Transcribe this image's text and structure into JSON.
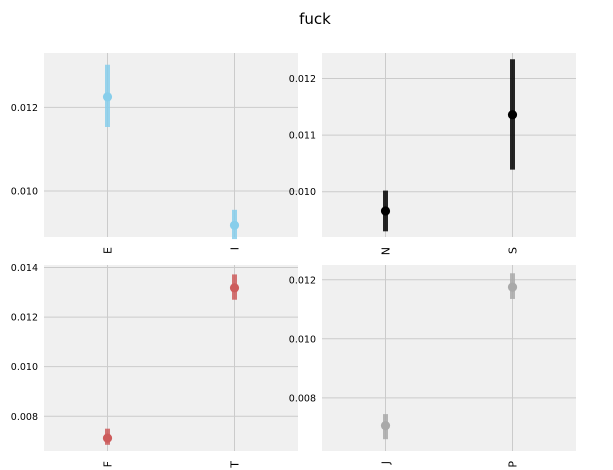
{
  "figure": {
    "title": "fuck"
  },
  "chart_data": [
    {
      "type": "point-range",
      "color": "#87CEEB",
      "categories": [
        "E",
        "I"
      ],
      "values": [
        0.01225,
        0.00918
      ],
      "lower": [
        0.01153,
        0.00885
      ],
      "upper": [
        0.01302,
        0.00955
      ],
      "ylim": [
        0.0089,
        0.0133
      ],
      "yticks": [
        0.01,
        0.012
      ],
      "ytick_labels": [
        "0.010",
        "0.012"
      ],
      "grid": true
    },
    {
      "type": "point-range",
      "color": "#000000",
      "categories": [
        "N",
        "S"
      ],
      "values": [
        0.00966,
        0.01136
      ],
      "lower": [
        0.0093,
        0.01039
      ],
      "upper": [
        0.01002,
        0.01234
      ],
      "ylim": [
        0.0092,
        0.01245
      ],
      "yticks": [
        0.01,
        0.011,
        0.012
      ],
      "ytick_labels": [
        "0.010",
        "0.011",
        "0.012"
      ],
      "grid": true
    },
    {
      "type": "point-range",
      "color": "#CD5C5C",
      "categories": [
        "F",
        "T"
      ],
      "values": [
        0.00712,
        0.01318
      ],
      "lower": [
        0.00685,
        0.0127
      ],
      "upper": [
        0.0075,
        0.01372
      ],
      "ylim": [
        0.0066,
        0.0141
      ],
      "yticks": [
        0.008,
        0.01,
        0.012,
        0.014
      ],
      "ytick_labels": [
        "0.008",
        "0.010",
        "0.012",
        "0.014"
      ],
      "grid": true
    },
    {
      "type": "point-range",
      "color": "#A9A9A9",
      "categories": [
        "J",
        "P"
      ],
      "values": [
        0.00706,
        0.01175
      ],
      "lower": [
        0.0066,
        0.01135
      ],
      "upper": [
        0.00745,
        0.01222
      ],
      "ylim": [
        0.0062,
        0.0125
      ],
      "yticks": [
        0.008,
        0.01,
        0.012
      ],
      "ytick_labels": [
        "0.008",
        "0.010",
        "0.012"
      ],
      "grid": true
    }
  ]
}
